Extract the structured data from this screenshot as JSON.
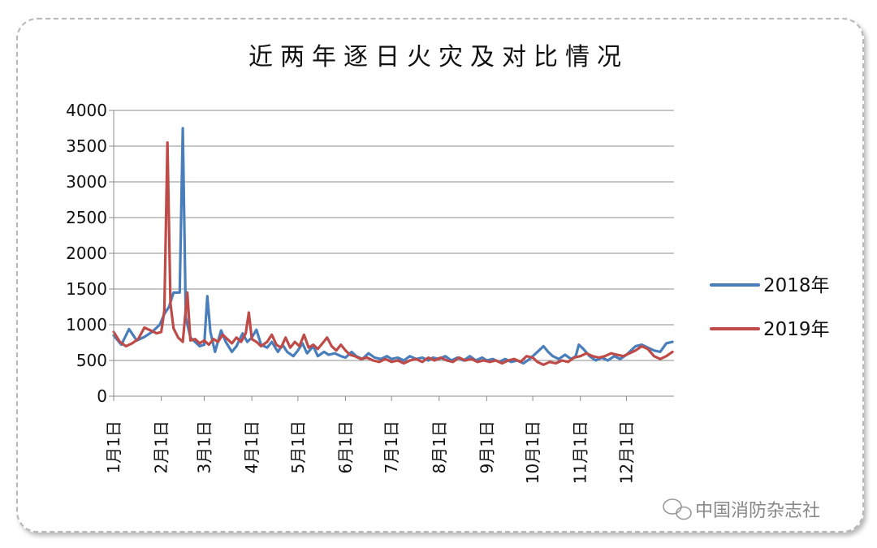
{
  "chart_data": {
    "type": "line",
    "title": "近两年逐日火灾及对比情况",
    "xlabel": "",
    "ylabel": "",
    "ylim": [
      0,
      4000
    ],
    "yticks": [
      0,
      500,
      1000,
      1500,
      2000,
      2500,
      3000,
      3500,
      4000
    ],
    "x_tick_labels": [
      "1月1日",
      "2月1日",
      "3月1日",
      "4月1日",
      "5月1日",
      "6月1日",
      "7月1日",
      "8月1日",
      "9月1日",
      "10月1日",
      "11月1日",
      "12月1日"
    ],
    "x_tick_days": [
      0,
      31,
      59,
      90,
      120,
      151,
      181,
      212,
      243,
      273,
      304,
      334
    ],
    "grid": true,
    "legend_position": "right",
    "colors": {
      "2018年": "#4a7ebb",
      "2019年": "#be4b48"
    },
    "series": [
      {
        "name": "2018年",
        "points": [
          [
            0,
            850
          ],
          [
            5,
            720
          ],
          [
            10,
            940
          ],
          [
            15,
            780
          ],
          [
            20,
            830
          ],
          [
            25,
            900
          ],
          [
            30,
            1000
          ],
          [
            33,
            1150
          ],
          [
            36,
            1250
          ],
          [
            39,
            1450
          ],
          [
            43,
            1450
          ],
          [
            45,
            3750
          ],
          [
            47,
            1100
          ],
          [
            50,
            820
          ],
          [
            53,
            760
          ],
          [
            56,
            700
          ],
          [
            59,
            720
          ],
          [
            61,
            1400
          ],
          [
            63,
            900
          ],
          [
            66,
            620
          ],
          [
            70,
            920
          ],
          [
            73,
            760
          ],
          [
            77,
            620
          ],
          [
            80,
            700
          ],
          [
            84,
            880
          ],
          [
            87,
            760
          ],
          [
            90,
            820
          ],
          [
            93,
            930
          ],
          [
            96,
            720
          ],
          [
            100,
            680
          ],
          [
            103,
            760
          ],
          [
            107,
            620
          ],
          [
            110,
            720
          ],
          [
            113,
            620
          ],
          [
            117,
            560
          ],
          [
            120,
            640
          ],
          [
            123,
            740
          ],
          [
            126,
            600
          ],
          [
            130,
            700
          ],
          [
            133,
            560
          ],
          [
            137,
            620
          ],
          [
            140,
            580
          ],
          [
            144,
            600
          ],
          [
            148,
            560
          ],
          [
            151,
            540
          ],
          [
            155,
            620
          ],
          [
            158,
            560
          ],
          [
            162,
            520
          ],
          [
            166,
            600
          ],
          [
            170,
            540
          ],
          [
            174,
            520
          ],
          [
            178,
            560
          ],
          [
            181,
            520
          ],
          [
            185,
            540
          ],
          [
            189,
            500
          ],
          [
            193,
            560
          ],
          [
            197,
            520
          ],
          [
            201,
            540
          ],
          [
            205,
            500
          ],
          [
            208,
            540
          ],
          [
            212,
            520
          ],
          [
            216,
            560
          ],
          [
            220,
            500
          ],
          [
            224,
            540
          ],
          [
            228,
            500
          ],
          [
            232,
            560
          ],
          [
            236,
            500
          ],
          [
            240,
            540
          ],
          [
            243,
            500
          ],
          [
            247,
            520
          ],
          [
            251,
            480
          ],
          [
            255,
            520
          ],
          [
            259,
            480
          ],
          [
            263,
            500
          ],
          [
            267,
            460
          ],
          [
            271,
            520
          ],
          [
            273,
            560
          ],
          [
            276,
            620
          ],
          [
            280,
            700
          ],
          [
            283,
            620
          ],
          [
            286,
            560
          ],
          [
            290,
            520
          ],
          [
            294,
            580
          ],
          [
            298,
            520
          ],
          [
            301,
            560
          ],
          [
            303,
            720
          ],
          [
            306,
            660
          ],
          [
            310,
            560
          ],
          [
            314,
            500
          ],
          [
            318,
            540
          ],
          [
            322,
            500
          ],
          [
            326,
            560
          ],
          [
            330,
            520
          ],
          [
            334,
            580
          ],
          [
            337,
            640
          ],
          [
            340,
            700
          ],
          [
            344,
            720
          ],
          [
            348,
            680
          ],
          [
            352,
            640
          ],
          [
            356,
            620
          ],
          [
            360,
            740
          ],
          [
            364,
            760
          ]
        ]
      },
      {
        "name": "2019年",
        "points": [
          [
            0,
            900
          ],
          [
            4,
            760
          ],
          [
            8,
            700
          ],
          [
            12,
            740
          ],
          [
            16,
            800
          ],
          [
            20,
            960
          ],
          [
            24,
            920
          ],
          [
            28,
            880
          ],
          [
            31,
            900
          ],
          [
            33,
            1200
          ],
          [
            35,
            3550
          ],
          [
            37,
            1300
          ],
          [
            39,
            950
          ],
          [
            42,
            820
          ],
          [
            45,
            760
          ],
          [
            48,
            1450
          ],
          [
            50,
            780
          ],
          [
            53,
            800
          ],
          [
            56,
            740
          ],
          [
            59,
            780
          ],
          [
            62,
            720
          ],
          [
            65,
            800
          ],
          [
            68,
            760
          ],
          [
            71,
            860
          ],
          [
            74,
            800
          ],
          [
            77,
            740
          ],
          [
            80,
            820
          ],
          [
            83,
            760
          ],
          [
            86,
            880
          ],
          [
            88,
            1170
          ],
          [
            90,
            800
          ],
          [
            93,
            760
          ],
          [
            96,
            700
          ],
          [
            100,
            760
          ],
          [
            103,
            860
          ],
          [
            106,
            720
          ],
          [
            109,
            680
          ],
          [
            112,
            820
          ],
          [
            115,
            680
          ],
          [
            118,
            760
          ],
          [
            121,
            700
          ],
          [
            124,
            860
          ],
          [
            127,
            680
          ],
          [
            130,
            720
          ],
          [
            133,
            660
          ],
          [
            136,
            740
          ],
          [
            139,
            820
          ],
          [
            142,
            700
          ],
          [
            145,
            640
          ],
          [
            148,
            720
          ],
          [
            151,
            640
          ],
          [
            154,
            580
          ],
          [
            157,
            560
          ],
          [
            161,
            520
          ],
          [
            165,
            540
          ],
          [
            169,
            500
          ],
          [
            173,
            480
          ],
          [
            177,
            520
          ],
          [
            181,
            480
          ],
          [
            185,
            500
          ],
          [
            189,
            460
          ],
          [
            193,
            500
          ],
          [
            197,
            520
          ],
          [
            201,
            480
          ],
          [
            205,
            540
          ],
          [
            209,
            500
          ],
          [
            213,
            540
          ],
          [
            217,
            500
          ],
          [
            221,
            480
          ],
          [
            225,
            540
          ],
          [
            229,
            500
          ],
          [
            233,
            520
          ],
          [
            237,
            480
          ],
          [
            241,
            500
          ],
          [
            245,
            480
          ],
          [
            249,
            500
          ],
          [
            253,
            460
          ],
          [
            257,
            500
          ],
          [
            261,
            520
          ],
          [
            265,
            480
          ],
          [
            269,
            560
          ],
          [
            273,
            540
          ],
          [
            276,
            480
          ],
          [
            280,
            440
          ],
          [
            284,
            480
          ],
          [
            288,
            460
          ],
          [
            292,
            500
          ],
          [
            296,
            480
          ],
          [
            300,
            540
          ],
          [
            304,
            560
          ],
          [
            308,
            600
          ],
          [
            312,
            560
          ],
          [
            316,
            540
          ],
          [
            320,
            560
          ],
          [
            324,
            600
          ],
          [
            328,
            580
          ],
          [
            332,
            560
          ],
          [
            336,
            600
          ],
          [
            340,
            640
          ],
          [
            344,
            700
          ],
          [
            348,
            660
          ],
          [
            352,
            560
          ],
          [
            356,
            520
          ],
          [
            360,
            560
          ],
          [
            364,
            620
          ]
        ]
      }
    ]
  },
  "watermark": {
    "text": "中国消防杂志社",
    "icon": "wechat-icon"
  }
}
